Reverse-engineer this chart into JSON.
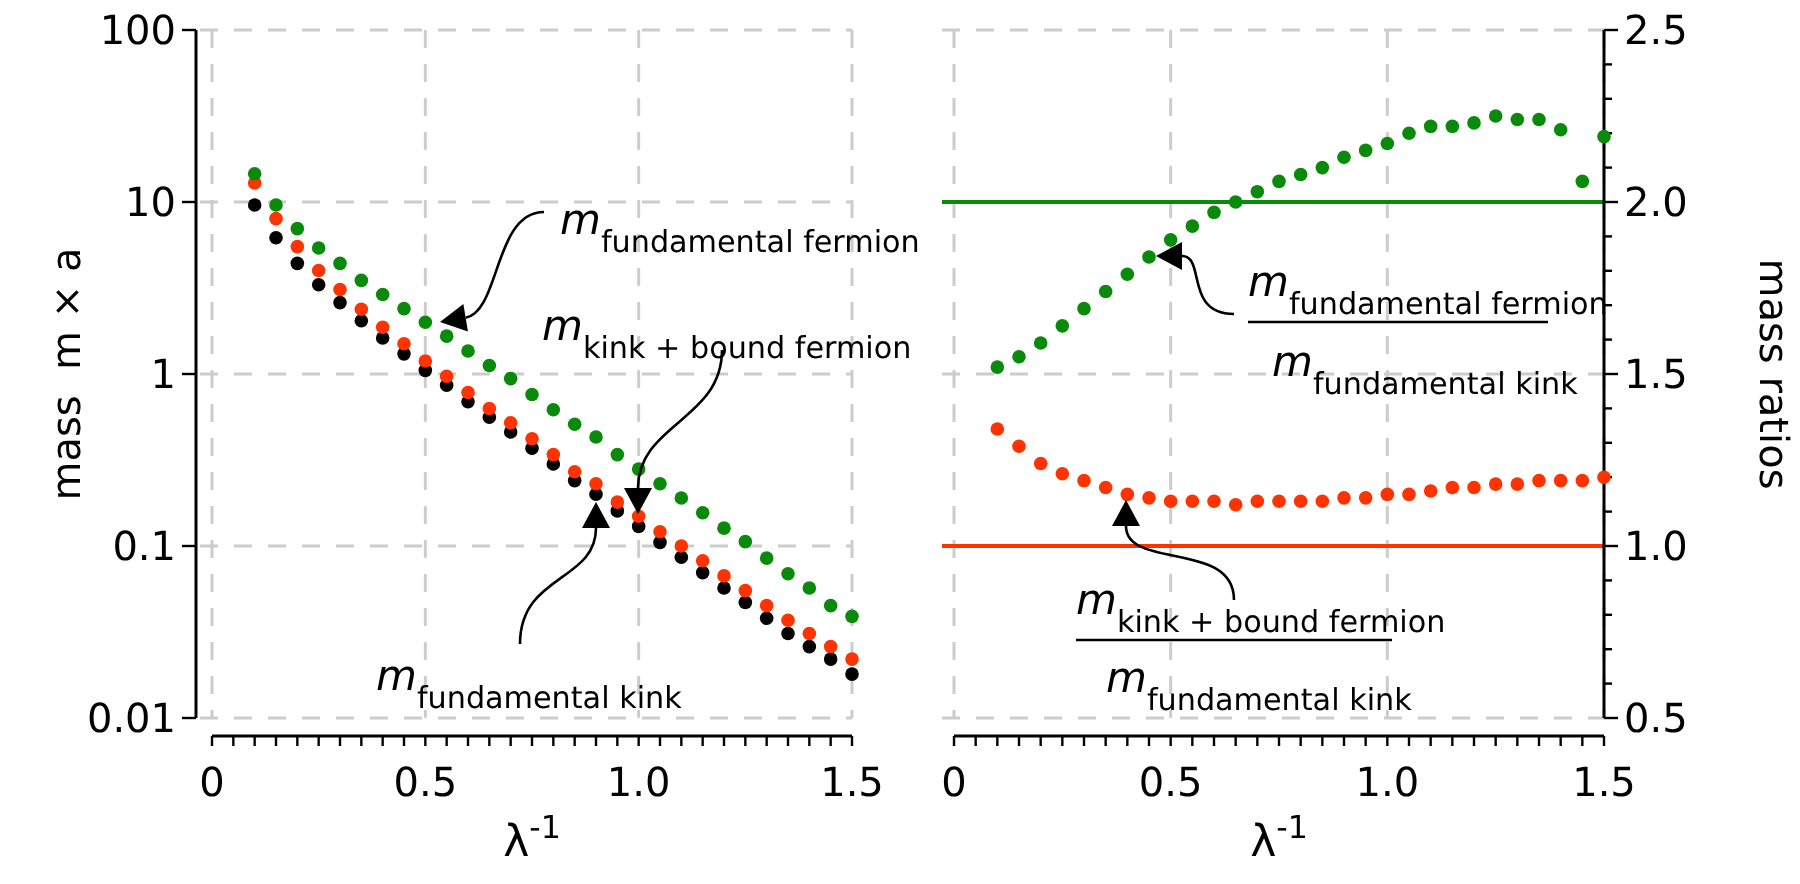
{
  "chart_data": [
    {
      "type": "scatter",
      "xlabel": "λ$^{-1}$",
      "ylabel": "mass  m × a",
      "log": "y",
      "grid": true,
      "marker": "circle",
      "x": [
        0.1,
        0.15,
        0.2,
        0.25,
        0.3,
        0.35,
        0.4,
        0.45,
        0.5,
        0.55,
        0.6,
        0.65,
        0.7,
        0.75,
        0.8,
        0.85,
        0.9,
        0.95,
        1.0,
        1.05,
        1.1,
        1.15,
        1.2,
        1.25,
        1.3,
        1.35,
        1.4,
        1.45,
        1.5
      ],
      "xlim": [
        0,
        1.5
      ],
      "xticks": [
        0,
        {
          "value": 0.05,
          "label": null
        },
        {
          "value": 0.1,
          "label": null
        },
        {
          "value": 0.15,
          "label": null
        },
        {
          "value": 0.2,
          "label": null
        },
        {
          "value": 0.25,
          "label": null
        },
        {
          "value": 0.3,
          "label": null
        },
        {
          "value": 0.35,
          "label": null
        },
        {
          "value": 0.4,
          "label": null
        },
        {
          "value": 0.45,
          "label": null
        },
        0.5,
        {
          "value": 0.55,
          "label": null
        },
        {
          "value": 0.6,
          "label": null
        },
        {
          "value": 0.65,
          "label": null
        },
        {
          "value": 0.7,
          "label": null
        },
        {
          "value": 0.75,
          "label": null
        },
        {
          "value": 0.8,
          "label": null
        },
        {
          "value": 0.85,
          "label": null
        },
        {
          "value": 0.9,
          "label": null
        },
        {
          "value": 0.95,
          "label": null
        },
        {
          "value": 1,
          "label": "1.0"
        },
        {
          "value": 1.05,
          "label": null
        },
        {
          "value": 1.1,
          "label": null
        },
        {
          "value": 1.15,
          "label": null
        },
        {
          "value": 1.2,
          "label": null
        },
        {
          "value": 1.25,
          "label": null
        },
        {
          "value": 1.3,
          "label": null
        },
        {
          "value": 1.35,
          "label": null
        },
        {
          "value": 1.4,
          "label": null
        },
        {
          "value": 1.45,
          "label": null
        },
        1.5
      ],
      "ylim": [
        0.01,
        100
      ],
      "yticks": [
        0.01,
        0.1,
        1,
        10,
        100
      ],
      "series": [
        {
          "color": "#000000",
          "values": [
            9.6,
            6.2,
            4.4,
            3.3,
            2.6,
            2.04,
            1.62,
            1.31,
            1.05,
            0.86,
            0.69,
            0.56,
            0.46,
            0.37,
            0.3,
            0.24,
            0.2,
            0.16,
            0.13,
            0.105,
            0.086,
            0.07,
            0.057,
            0.047,
            0.038,
            0.031,
            0.026,
            0.022,
            0.018
          ]
        },
        {
          "color": "#ff3300",
          "values": [
            12.9,
            8.0,
            5.5,
            4.0,
            3.1,
            2.38,
            1.87,
            1.5,
            1.19,
            0.97,
            0.78,
            0.63,
            0.52,
            0.42,
            0.34,
            0.27,
            0.23,
            0.18,
            0.149,
            0.121,
            0.1,
            0.082,
            0.067,
            0.055,
            0.045,
            0.037,
            0.031,
            0.026,
            0.022
          ]
        },
        {
          "color": "#0a8a0a",
          "values": [
            14.6,
            9.6,
            7.0,
            5.4,
            4.4,
            3.5,
            2.9,
            2.4,
            2.0,
            1.66,
            1.36,
            1.12,
            0.94,
            0.76,
            0.62,
            0.51,
            0.43,
            0.34,
            0.28,
            0.23,
            0.19,
            0.156,
            0.127,
            0.106,
            0.085,
            0.069,
            0.057,
            0.045,
            0.039
          ]
        }
      ],
      "annotations": [
        "m$_{fundamental fermion}$",
        "m$_{kink + bound fermion}$",
        "m$_{fundamental kink}$"
      ]
    },
    {
      "type": "scatter",
      "xlabel": "λ$^{-1}$",
      "y2label": "mass ratios",
      "grid": true,
      "marker": "circle",
      "x": [
        0.1,
        0.15,
        0.2,
        0.25,
        0.3,
        0.35,
        0.4,
        0.45,
        0.5,
        0.55,
        0.6,
        0.65,
        0.7,
        0.75,
        0.8,
        0.85,
        0.9,
        0.95,
        1.0,
        1.05,
        1.1,
        1.15,
        1.2,
        1.25,
        1.3,
        1.35,
        1.4,
        1.45,
        1.5
      ],
      "xlim": [
        0,
        1.5
      ],
      "xticks": [
        0,
        {
          "value": 0.05,
          "label": null
        },
        {
          "value": 0.1,
          "label": null
        },
        {
          "value": 0.15,
          "label": null
        },
        {
          "value": 0.2,
          "label": null
        },
        {
          "value": 0.25,
          "label": null
        },
        {
          "value": 0.3,
          "label": null
        },
        {
          "value": 0.35,
          "label": null
        },
        {
          "value": 0.4,
          "label": null
        },
        {
          "value": 0.45,
          "label": null
        },
        0.5,
        {
          "value": 0.55,
          "label": null
        },
        {
          "value": 0.6,
          "label": null
        },
        {
          "value": 0.65,
          "label": null
        },
        {
          "value": 0.7,
          "label": null
        },
        {
          "value": 0.75,
          "label": null
        },
        {
          "value": 0.8,
          "label": null
        },
        {
          "value": 0.85,
          "label": null
        },
        {
          "value": 0.9,
          "label": null
        },
        {
          "value": 0.95,
          "label": null
        },
        {
          "value": 1,
          "label": "1.0"
        },
        {
          "value": 1.05,
          "label": null
        },
        {
          "value": 1.1,
          "label": null
        },
        {
          "value": 1.15,
          "label": null
        },
        {
          "value": 1.2,
          "label": null
        },
        {
          "value": 1.25,
          "label": null
        },
        {
          "value": 1.3,
          "label": null
        },
        {
          "value": 1.35,
          "label": null
        },
        {
          "value": 1.4,
          "label": null
        },
        {
          "value": 1.45,
          "label": null
        },
        1.5
      ],
      "y2lim": [
        0.5,
        2.5
      ],
      "y2ticks": [
        0.5,
        {
          "value": 0.6,
          "label": null
        },
        {
          "value": 0.7,
          "label": null
        },
        {
          "value": 0.8,
          "label": null
        },
        {
          "value": 0.9,
          "label": null
        },
        {
          "value": 1,
          "label": "1.0"
        },
        {
          "value": 1.1,
          "label": null
        },
        {
          "value": 1.2,
          "label": null
        },
        {
          "value": 1.3,
          "label": null
        },
        {
          "value": 1.4,
          "label": null
        },
        1.5,
        {
          "value": 1.6,
          "label": null
        },
        {
          "value": 1.7,
          "label": null
        },
        {
          "value": 1.8,
          "label": null
        },
        {
          "value": 1.9,
          "label": null
        },
        {
          "value": 2,
          "label": "2.0"
        },
        {
          "value": 2.1,
          "label": null
        },
        {
          "value": 2.2,
          "label": null
        },
        {
          "value": 2.3,
          "label": null
        },
        {
          "value": 2.4,
          "label": null
        },
        2.5
      ],
      "ref_lines": [
        {
          "axis": "y2",
          "value": 2,
          "color": "#0a8a0a"
        },
        {
          "axis": "y2",
          "value": 1,
          "color": "#ff3300"
        }
      ],
      "series": [
        {
          "color": "#0a8a0a",
          "axis": "y2",
          "values": [
            1.52,
            1.55,
            1.59,
            1.64,
            1.69,
            1.74,
            1.79,
            1.84,
            1.89,
            1.93,
            1.97,
            2.0,
            2.03,
            2.06,
            2.08,
            2.1,
            2.13,
            2.15,
            2.17,
            2.2,
            2.22,
            2.22,
            2.23,
            2.25,
            2.24,
            2.24,
            2.21,
            2.06,
            2.19
          ]
        },
        {
          "color": "#ff3300",
          "axis": "y2",
          "values": [
            1.34,
            1.29,
            1.24,
            1.21,
            1.19,
            1.17,
            1.15,
            1.14,
            1.13,
            1.13,
            1.13,
            1.12,
            1.13,
            1.13,
            1.13,
            1.13,
            1.14,
            1.14,
            1.15,
            1.15,
            1.16,
            1.17,
            1.17,
            1.18,
            1.18,
            1.19,
            1.19,
            1.19,
            1.2
          ]
        }
      ],
      "annotations": [
        "m$_{fundamental fermion}$",
        "m$_{fundamental kink}$",
        "m$_{kink + bound fermion}$",
        "m$_{fundamental kink}$"
      ]
    }
  ]
}
